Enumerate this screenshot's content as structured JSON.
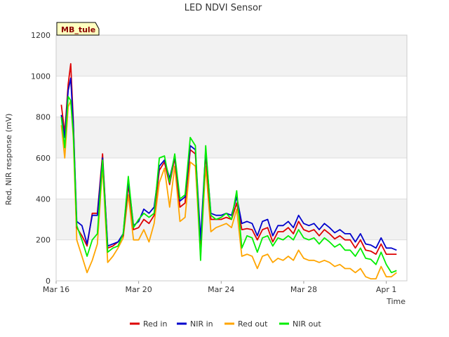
{
  "chart_data": {
    "type": "line",
    "title": "LED NDVI Sensor",
    "xlabel": "Time",
    "ylabel": "Red, NIR response (mV)",
    "annotation": "MB_tule",
    "ylim": [
      0,
      1200
    ],
    "yticks": [
      0,
      200,
      400,
      600,
      800,
      1000,
      1200
    ],
    "xlim": [
      "2024-03-16",
      "2024-04-02"
    ],
    "xticks": [
      {
        "value": "2024-03-16",
        "label": "Mar 16"
      },
      {
        "value": "2024-03-20",
        "label": "Mar 20"
      },
      {
        "value": "2024-03-24",
        "label": "Mar 24"
      },
      {
        "value": "2024-03-28",
        "label": "Mar 28"
      },
      {
        "value": "2024-04-01",
        "label": "Apr 1"
      }
    ],
    "grid": true,
    "legend_position": "bottom",
    "x": [
      "2024-03-16 06:00",
      "2024-03-16 10:00",
      "2024-03-16 14:00",
      "2024-03-16 17:00",
      "2024-03-16 20:00",
      "2024-03-17 00:00",
      "2024-03-17 06:00",
      "2024-03-17 12:00",
      "2024-03-17 18:00",
      "2024-03-18 00:00",
      "2024-03-18 06:00",
      "2024-03-18 12:00",
      "2024-03-18 18:00",
      "2024-03-19 00:00",
      "2024-03-19 06:00",
      "2024-03-19 12:00",
      "2024-03-19 18:00",
      "2024-03-20 00:00",
      "2024-03-20 06:00",
      "2024-03-20 12:00",
      "2024-03-20 18:00",
      "2024-03-21 00:00",
      "2024-03-21 06:00",
      "2024-03-21 12:00",
      "2024-03-21 18:00",
      "2024-03-22 00:00",
      "2024-03-22 06:00",
      "2024-03-22 12:00",
      "2024-03-22 18:00",
      "2024-03-23 00:00",
      "2024-03-23 06:00",
      "2024-03-23 12:00",
      "2024-03-23 18:00",
      "2024-03-24 00:00",
      "2024-03-24 06:00",
      "2024-03-24 12:00",
      "2024-03-24 18:00",
      "2024-03-25 00:00",
      "2024-03-25 06:00",
      "2024-03-25 12:00",
      "2024-03-25 18:00",
      "2024-03-26 00:00",
      "2024-03-26 06:00",
      "2024-03-26 12:00",
      "2024-03-26 18:00",
      "2024-03-27 00:00",
      "2024-03-27 06:00",
      "2024-03-27 12:00",
      "2024-03-27 18:00",
      "2024-03-28 00:00",
      "2024-03-28 06:00",
      "2024-03-28 12:00",
      "2024-03-28 18:00",
      "2024-03-29 00:00",
      "2024-03-29 06:00",
      "2024-03-29 12:00",
      "2024-03-29 18:00",
      "2024-03-30 00:00",
      "2024-03-30 06:00",
      "2024-03-30 12:00",
      "2024-03-30 18:00",
      "2024-03-31 00:00",
      "2024-03-31 06:00",
      "2024-03-31 12:00",
      "2024-03-31 18:00",
      "2024-04-01 00:00",
      "2024-04-01 06:00",
      "2024-04-01 12:00"
    ],
    "series": [
      {
        "name": "Red in",
        "color": "#dd0000",
        "values": [
          860,
          720,
          960,
          1060,
          780,
          260,
          220,
          170,
          330,
          330,
          620,
          160,
          170,
          190,
          220,
          470,
          250,
          260,
          300,
          280,
          320,
          540,
          580,
          470,
          600,
          360,
          380,
          640,
          620,
          180,
          620,
          300,
          300,
          300,
          310,
          300,
          380,
          250,
          255,
          250,
          200,
          250,
          260,
          190,
          240,
          240,
          260,
          230,
          290,
          250,
          240,
          250,
          220,
          250,
          230,
          205,
          220,
          200,
          200,
          160,
          200,
          150,
          145,
          130,
          180,
          130,
          130,
          130
        ]
      },
      {
        "name": "NIR in",
        "color": "#0000cc",
        "values": [
          810,
          700,
          930,
          990,
          760,
          290,
          270,
          180,
          320,
          320,
          600,
          170,
          180,
          190,
          230,
          490,
          270,
          290,
          350,
          330,
          360,
          560,
          590,
          500,
          610,
          390,
          410,
          660,
          640,
          200,
          640,
          330,
          320,
          320,
          330,
          320,
          410,
          280,
          290,
          280,
          220,
          290,
          300,
          220,
          270,
          270,
          290,
          260,
          320,
          280,
          270,
          280,
          250,
          280,
          260,
          235,
          250,
          230,
          230,
          190,
          230,
          180,
          175,
          160,
          210,
          160,
          160,
          150
        ]
      },
      {
        "name": "Red out",
        "color": "#ffa500",
        "values": [
          760,
          600,
          850,
          880,
          700,
          200,
          120,
          40,
          100,
          180,
          560,
          90,
          120,
          160,
          210,
          420,
          200,
          200,
          250,
          190,
          280,
          480,
          550,
          360,
          560,
          290,
          310,
          580,
          560,
          120,
          560,
          240,
          260,
          270,
          280,
          260,
          350,
          120,
          130,
          120,
          60,
          120,
          130,
          90,
          110,
          100,
          120,
          100,
          150,
          110,
          100,
          100,
          90,
          100,
          90,
          70,
          80,
          60,
          60,
          40,
          60,
          20,
          10,
          10,
          70,
          20,
          20,
          40
        ]
      },
      {
        "name": "NIR out",
        "color": "#00ee00",
        "values": [
          800,
          650,
          900,
          880,
          720,
          270,
          200,
          120,
          200,
          230,
          590,
          140,
          160,
          170,
          230,
          510,
          260,
          300,
          330,
          310,
          330,
          600,
          610,
          480,
          620,
          400,
          420,
          700,
          660,
          100,
          660,
          320,
          300,
          310,
          330,
          300,
          440,
          160,
          220,
          210,
          140,
          210,
          220,
          170,
          210,
          200,
          220,
          200,
          250,
          210,
          200,
          210,
          180,
          210,
          190,
          165,
          180,
          150,
          150,
          120,
          160,
          110,
          105,
          80,
          140,
          80,
          40,
          50
        ]
      }
    ]
  }
}
